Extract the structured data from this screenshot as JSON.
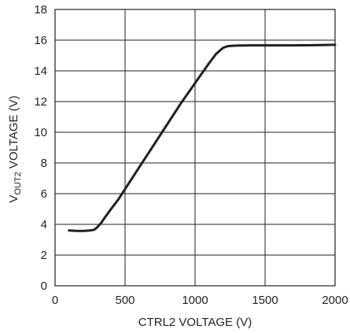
{
  "chart_data": {
    "type": "line",
    "xlabel": "CTRL2 VOLTAGE (V)",
    "ylabel": {
      "prefix": "V",
      "subscript": "OUT2",
      "suffix": " VOLTAGE (V)"
    },
    "xlim": [
      0,
      2000
    ],
    "ylim": [
      0,
      18
    ],
    "xticks": [
      0,
      500,
      1000,
      1500,
      2000
    ],
    "yticks": [
      0,
      2,
      4,
      6,
      8,
      10,
      12,
      14,
      16,
      18
    ],
    "grid": true,
    "series": [
      {
        "color": "#231f20",
        "x": [
          100,
          150,
          200,
          250,
          280,
          300,
          330,
          360,
          400,
          450,
          500,
          600,
          700,
          800,
          900,
          1000,
          1100,
          1150,
          1200,
          1230,
          1260,
          1300,
          1400,
          1500,
          1600,
          1700,
          1800,
          1900,
          2000
        ],
        "y": [
          3.6,
          3.58,
          3.57,
          3.6,
          3.65,
          3.8,
          4.1,
          4.5,
          5.0,
          5.6,
          6.3,
          7.7,
          9.1,
          10.5,
          11.9,
          13.2,
          14.5,
          15.1,
          15.5,
          15.6,
          15.63,
          15.65,
          15.66,
          15.66,
          15.66,
          15.66,
          15.67,
          15.68,
          15.7
        ]
      }
    ]
  }
}
